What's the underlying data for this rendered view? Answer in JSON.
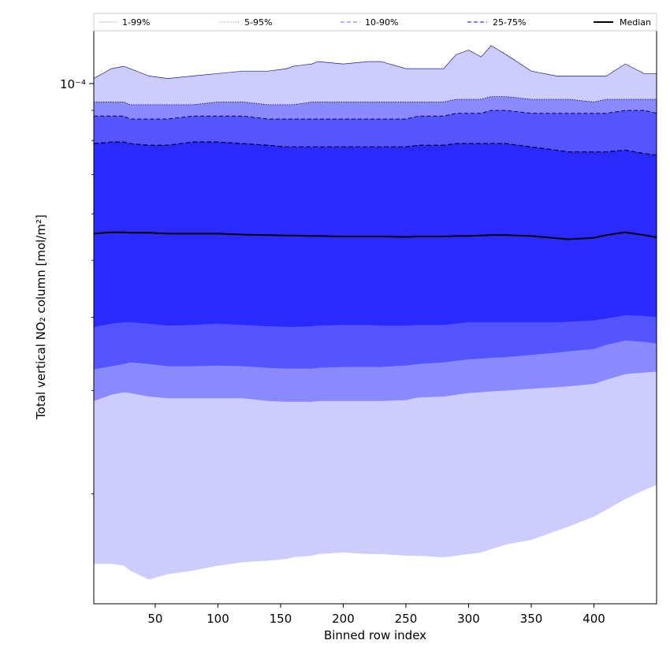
{
  "chart_data": {
    "type": "area",
    "title": "",
    "xlabel": "Binned row index",
    "ylabel": "Total vertical NO₂ column [mol/m²]",
    "xlim": [
      1,
      450
    ],
    "yscale": "log",
    "ylim": [
      1.3e-05,
      0.000123
    ],
    "x_ticks": [
      50,
      100,
      150,
      200,
      250,
      300,
      350,
      400
    ],
    "y_major_ticks": [
      {
        "value": 0.0001,
        "label": "10⁻⁴"
      }
    ],
    "y_minor_ticks": [
      2e-05,
      3e-05,
      4e-05,
      5e-05,
      6e-05,
      7e-05,
      8e-05,
      9e-05
    ],
    "grid": false,
    "legend": {
      "placement": "top",
      "entries": [
        {
          "label": "1-99%",
          "color": "#d8d8f4",
          "style": "solid"
        },
        {
          "label": "5-95%",
          "color": "#b5b5ee",
          "style": "dotted"
        },
        {
          "label": "10-90%",
          "color": "#8a8aff",
          "style": "dashed"
        },
        {
          "label": "25-75%",
          "color": "#3a3aef",
          "style": "dashed"
        },
        {
          "label": "Median",
          "color": "#000000",
          "style": "solid"
        }
      ]
    },
    "x": [
      1,
      15,
      25,
      30,
      45,
      60,
      80,
      100,
      120,
      140,
      155,
      160,
      175,
      180,
      200,
      220,
      230,
      250,
      260,
      280,
      290,
      300,
      310,
      318,
      330,
      350,
      370,
      380,
      400,
      410,
      425,
      440,
      450
    ],
    "series": [
      {
        "name": "1-99%",
        "color": "#ccccff",
        "upper": [
          0.000102,
          0.000106,
          0.000107,
          0.000106,
          0.000103,
          0.000102,
          0.000103,
          0.000104,
          0.000105,
          0.000105,
          0.000106,
          0.000107,
          0.000108,
          0.000109,
          0.000108,
          0.000109,
          0.000109,
          0.000106,
          0.000106,
          0.000106,
          0.000112,
          0.000114,
          0.000111,
          0.000116,
          0.000112,
          0.000105,
          0.000103,
          0.000103,
          0.000103,
          0.000103,
          0.000108,
          0.000104,
          0.000104
        ],
        "lower": [
          1.52e-05,
          1.52e-05,
          1.51e-05,
          1.48e-05,
          1.43e-05,
          1.46e-05,
          1.48e-05,
          1.51e-05,
          1.53e-05,
          1.54e-05,
          1.55e-05,
          1.56e-05,
          1.57e-05,
          1.58e-05,
          1.59e-05,
          1.58e-05,
          1.58e-05,
          1.57e-05,
          1.57e-05,
          1.56e-05,
          1.57e-05,
          1.58e-05,
          1.59e-05,
          1.61e-05,
          1.64e-05,
          1.67e-05,
          1.73e-05,
          1.76e-05,
          1.83e-05,
          1.88e-05,
          1.96e-05,
          2.03e-05,
          2.07e-05
        ]
      },
      {
        "name": "5-95%",
        "color": "#8a8aff",
        "upper": [
          9.3e-05,
          9.3e-05,
          9.3e-05,
          9.2e-05,
          9.2e-05,
          9.2e-05,
          9.2e-05,
          9.3e-05,
          9.3e-05,
          9.2e-05,
          9.2e-05,
          9.2e-05,
          9.3e-05,
          9.3e-05,
          9.3e-05,
          9.3e-05,
          9.3e-05,
          9.3e-05,
          9.3e-05,
          9.3e-05,
          9.4e-05,
          9.4e-05,
          9.4e-05,
          9.5e-05,
          9.5e-05,
          9.4e-05,
          9.4e-05,
          9.4e-05,
          9.3e-05,
          9.4e-05,
          9.4e-05,
          9.4e-05,
          9.4e-05
        ],
        "lower": [
          2.88e-05,
          2.95e-05,
          2.98e-05,
          2.97e-05,
          2.93e-05,
          2.91e-05,
          2.91e-05,
          2.91e-05,
          2.91e-05,
          2.88e-05,
          2.87e-05,
          2.87e-05,
          2.87e-05,
          2.88e-05,
          2.88e-05,
          2.88e-05,
          2.88e-05,
          2.89e-05,
          2.92e-05,
          2.93e-05,
          2.95e-05,
          2.97e-05,
          2.98e-05,
          2.99e-05,
          3e-05,
          3.02e-05,
          3.04e-05,
          3.05e-05,
          3.08e-05,
          3.13e-05,
          3.2e-05,
          3.22e-05,
          3.23e-05
        ]
      },
      {
        "name": "10-90%",
        "color": "#5555ff",
        "upper": [
          8.8e-05,
          8.8e-05,
          8.8e-05,
          8.7e-05,
          8.7e-05,
          8.7e-05,
          8.8e-05,
          8.8e-05,
          8.8e-05,
          8.7e-05,
          8.7e-05,
          8.7e-05,
          8.7e-05,
          8.7e-05,
          8.7e-05,
          8.7e-05,
          8.7e-05,
          8.7e-05,
          8.8e-05,
          8.8e-05,
          8.9e-05,
          8.9e-05,
          8.9e-05,
          9e-05,
          9e-05,
          8.9e-05,
          8.9e-05,
          8.9e-05,
          8.9e-05,
          8.9e-05,
          9e-05,
          9e-05,
          8.9e-05
        ],
        "lower": [
          3.26e-05,
          3.3e-05,
          3.33e-05,
          3.35e-05,
          3.33e-05,
          3.3e-05,
          3.3e-05,
          3.31e-05,
          3.3e-05,
          3.28e-05,
          3.27e-05,
          3.27e-05,
          3.27e-05,
          3.28e-05,
          3.29e-05,
          3.29e-05,
          3.29e-05,
          3.31e-05,
          3.33e-05,
          3.35e-05,
          3.37e-05,
          3.39e-05,
          3.4e-05,
          3.41e-05,
          3.42e-05,
          3.45e-05,
          3.48e-05,
          3.5e-05,
          3.53e-05,
          3.59e-05,
          3.65e-05,
          3.63e-05,
          3.61e-05
        ]
      },
      {
        "name": "25-75%",
        "color": "#2a2aff",
        "upper": [
          7.9e-05,
          7.95e-05,
          7.95e-05,
          7.9e-05,
          7.85e-05,
          7.85e-05,
          7.95e-05,
          7.95e-05,
          7.9e-05,
          7.85e-05,
          7.8e-05,
          7.8e-05,
          7.8e-05,
          7.8e-05,
          7.8e-05,
          7.8e-05,
          7.8e-05,
          7.8e-05,
          7.85e-05,
          7.85e-05,
          7.9e-05,
          7.9e-05,
          7.9e-05,
          7.9e-05,
          7.9e-05,
          7.8e-05,
          7.7e-05,
          7.65e-05,
          7.65e-05,
          7.65e-05,
          7.7e-05,
          7.6e-05,
          7.55e-05
        ],
        "lower": [
          3.85e-05,
          3.9e-05,
          3.92e-05,
          3.92e-05,
          3.9e-05,
          3.87e-05,
          3.88e-05,
          3.9e-05,
          3.88e-05,
          3.86e-05,
          3.85e-05,
          3.85e-05,
          3.86e-05,
          3.87e-05,
          3.88e-05,
          3.88e-05,
          3.87e-05,
          3.87e-05,
          3.88e-05,
          3.88e-05,
          3.9e-05,
          3.92e-05,
          3.92e-05,
          3.92e-05,
          3.92e-05,
          3.92e-05,
          3.92e-05,
          3.93e-05,
          3.95e-05,
          3.98e-05,
          4.03e-05,
          4.02e-05,
          4e-05
        ]
      },
      {
        "name": "Median",
        "color": "#000000",
        "values": [
          5.55e-05,
          5.58e-05,
          5.58e-05,
          5.57e-05,
          5.57e-05,
          5.55e-05,
          5.55e-05,
          5.55e-05,
          5.53e-05,
          5.52e-05,
          5.51e-05,
          5.51e-05,
          5.5e-05,
          5.5e-05,
          5.49e-05,
          5.49e-05,
          5.49e-05,
          5.48e-05,
          5.49e-05,
          5.49e-05,
          5.5e-05,
          5.5e-05,
          5.51e-05,
          5.52e-05,
          5.52e-05,
          5.5e-05,
          5.45e-05,
          5.43e-05,
          5.46e-05,
          5.52e-05,
          5.58e-05,
          5.52e-05,
          5.47e-05
        ]
      }
    ]
  }
}
